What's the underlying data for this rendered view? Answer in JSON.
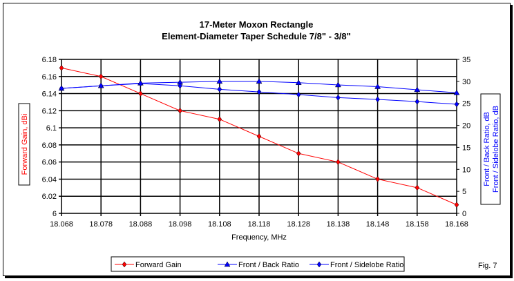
{
  "chart_data": {
    "type": "line",
    "title": "17-Meter Moxon Rectangle",
    "subtitle": "Element-Diameter Taper Schedule 7/8\" - 3/8\"",
    "xlabel": "Frequency, MHz",
    "ylabel": "Forward Gain,  dBi",
    "y2label": [
      "Front / Back Ratio,  dB",
      "Front / Sidelobe Ratio,  dB"
    ],
    "x": [
      "18.068",
      "18.078",
      "18.088",
      "18.098",
      "18.108",
      "18.118",
      "18.128",
      "18.138",
      "18.148",
      "18.158",
      "18.168"
    ],
    "ylim": [
      6,
      6.18
    ],
    "yticks": [
      "6",
      "6.02",
      "6.04",
      "6.06",
      "6.08",
      "6.1",
      "6.12",
      "6.14",
      "6.16",
      "6.18"
    ],
    "y2lim": [
      0,
      35
    ],
    "y2ticks": [
      "0",
      "5",
      "10",
      "15",
      "20",
      "25",
      "30",
      "35"
    ],
    "grid": true,
    "legend_position": "bottom",
    "series": [
      {
        "name": "Forward Gain",
        "axis": "left",
        "color": "#ff0000",
        "marker": "diamond",
        "values": [
          6.17,
          6.16,
          6.14,
          6.12,
          6.11,
          6.09,
          6.07,
          6.06,
          6.04,
          6.03,
          6.01
        ]
      },
      {
        "name": "Front / Back Ratio",
        "axis": "right",
        "color": "#0000ff",
        "marker": "triangle",
        "values": [
          28.4,
          29.0,
          29.6,
          29.8,
          30.0,
          30.0,
          29.7,
          29.2,
          28.8,
          28.1,
          27.4
        ]
      },
      {
        "name": "Front / Sidelobe Ratio",
        "axis": "right",
        "color": "#0000ff",
        "marker": "diamond",
        "values": [
          28.4,
          29.0,
          29.5,
          29.0,
          28.2,
          27.6,
          27.0,
          26.3,
          25.9,
          25.4,
          24.8
        ]
      }
    ],
    "annotation": "Fig. 7"
  }
}
